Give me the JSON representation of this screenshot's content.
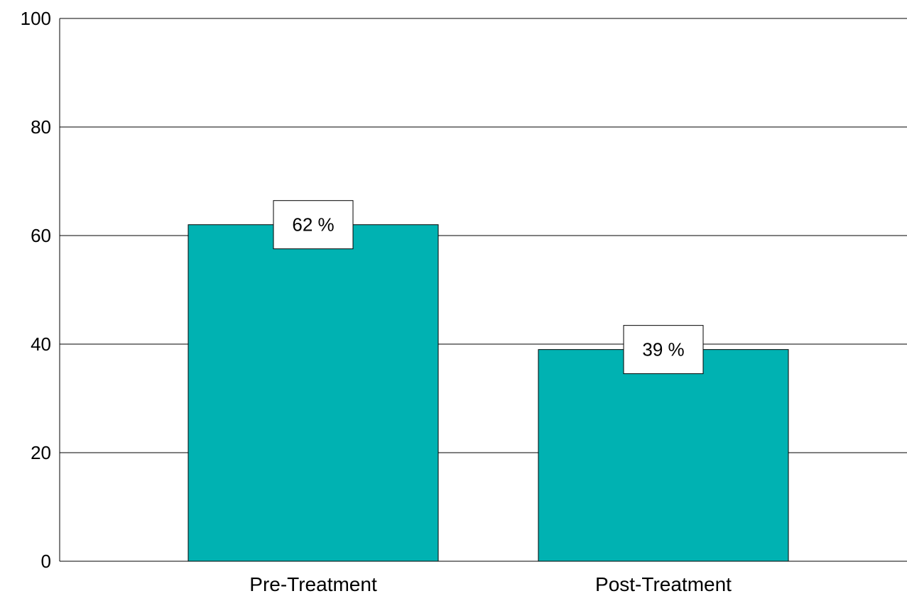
{
  "chart_data": {
    "type": "bar",
    "categories": [
      "Pre-Treatment",
      "Post-Treatment"
    ],
    "values": [
      62,
      39
    ],
    "data_labels": [
      "62 %",
      "39 %"
    ],
    "title": "",
    "xlabel": "",
    "ylabel": "",
    "ylim": [
      0,
      100
    ],
    "yticks": [
      0,
      20,
      40,
      60,
      80,
      100
    ],
    "ytick_labels": [
      "0",
      "20",
      "40",
      "60",
      "80",
      "100"
    ],
    "grid": true,
    "legend": "none",
    "bar_color": "#00B2B2"
  }
}
